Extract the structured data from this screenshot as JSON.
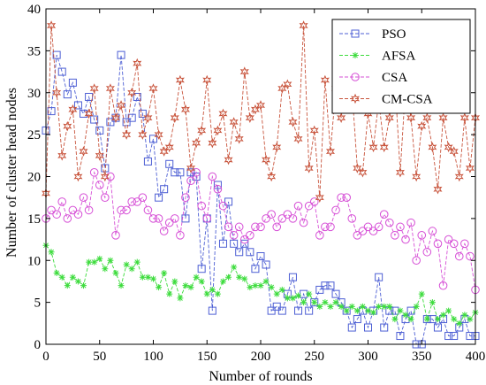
{
  "chart_data": {
    "type": "line",
    "title": "",
    "xlabel": "Number of rounds",
    "ylabel": "Number of cluster head nodes",
    "xlim": [
      0,
      400
    ],
    "ylim": [
      0,
      40
    ],
    "xticks": [
      0,
      50,
      100,
      150,
      200,
      250,
      300,
      350,
      400
    ],
    "yticks": [
      0,
      5,
      10,
      15,
      20,
      25,
      30,
      35,
      40
    ],
    "grid": false,
    "legend_position": "top-right",
    "series": [
      {
        "name": "PSO",
        "color": "#4d5fd4",
        "marker": "square",
        "x": [
          0,
          5,
          10,
          15,
          20,
          25,
          30,
          35,
          40,
          45,
          50,
          55,
          60,
          65,
          70,
          75,
          80,
          85,
          90,
          95,
          100,
          105,
          110,
          115,
          120,
          125,
          130,
          135,
          140,
          145,
          150,
          155,
          160,
          165,
          170,
          175,
          180,
          185,
          190,
          195,
          200,
          205,
          210,
          215,
          220,
          225,
          230,
          235,
          240,
          245,
          250,
          255,
          260,
          265,
          270,
          275,
          280,
          285,
          290,
          295,
          300,
          305,
          310,
          315,
          320,
          325,
          330,
          335,
          340,
          345,
          350,
          355,
          360,
          365,
          370,
          375,
          380,
          385,
          390,
          395,
          400
        ],
        "y": [
          25.5,
          27.8,
          34.5,
          32.5,
          29.8,
          31.2,
          28.5,
          27.5,
          29.5,
          26.8,
          25.5,
          21.0,
          26.5,
          27.0,
          34.5,
          26.5,
          27.0,
          29.5,
          27.5,
          21.8,
          24.5,
          17.5,
          18.5,
          21.5,
          20.5,
          20.5,
          15.0,
          20.5,
          20.0,
          9.0,
          15.0,
          4.0,
          19.0,
          12.0,
          17.0,
          12.0,
          11.0,
          12.0,
          11.0,
          9.0,
          10.5,
          9.5,
          4.0,
          4.5,
          4.0,
          6.0,
          8.0,
          4.0,
          6.0,
          4.0,
          5.0,
          6.5,
          7.0,
          7.0,
          6.0,
          5.0,
          4.0,
          2.0,
          3.0,
          4.0,
          2.0,
          4.0,
          8.0,
          2.0,
          4.0,
          4.0,
          1.0,
          3.0,
          4.0,
          0.0,
          0.0,
          3.0,
          3.0,
          2.0,
          3.0,
          1.0,
          1.0,
          2.0,
          3.0,
          1.0,
          1.0
        ]
      },
      {
        "name": "AFSA",
        "color": "#3ddc3d",
        "marker": "star",
        "x": [
          0,
          5,
          10,
          15,
          20,
          25,
          30,
          35,
          40,
          45,
          50,
          55,
          60,
          65,
          70,
          75,
          80,
          85,
          90,
          95,
          100,
          105,
          110,
          115,
          120,
          125,
          130,
          135,
          140,
          145,
          150,
          155,
          160,
          165,
          170,
          175,
          180,
          185,
          190,
          195,
          200,
          205,
          210,
          215,
          220,
          225,
          230,
          235,
          240,
          245,
          250,
          255,
          260,
          265,
          270,
          275,
          280,
          285,
          290,
          295,
          300,
          305,
          310,
          315,
          320,
          325,
          330,
          335,
          340,
          345,
          350,
          355,
          360,
          365,
          370,
          375,
          380,
          385,
          390,
          395,
          400
        ],
        "y": [
          11.8,
          11.0,
          8.5,
          8.0,
          7.0,
          8.0,
          7.5,
          7.0,
          9.8,
          9.8,
          10.2,
          9.0,
          10.0,
          8.5,
          7.0,
          9.5,
          9.0,
          9.8,
          8.0,
          8.0,
          7.8,
          6.8,
          8.5,
          6.0,
          7.5,
          5.5,
          7.0,
          6.8,
          8.0,
          7.5,
          6.0,
          6.5,
          6.0,
          7.5,
          8.0,
          9.2,
          8.0,
          7.8,
          6.8,
          7.0,
          7.0,
          7.5,
          6.8,
          6.0,
          6.5,
          5.5,
          5.5,
          5.8,
          5.0,
          6.0,
          5.0,
          4.5,
          5.0,
          4.5,
          5.0,
          4.5,
          4.0,
          4.5,
          4.0,
          4.5,
          4.0,
          3.8,
          4.5,
          4.5,
          4.5,
          3.0,
          4.0,
          3.5,
          3.0,
          4.5,
          6.0,
          3.0,
          5.0,
          3.0,
          3.5,
          4.0,
          3.0,
          2.5,
          3.5,
          3.0,
          3.8
        ]
      },
      {
        "name": "CSA",
        "color": "#d64fd6",
        "marker": "circle",
        "x": [
          0,
          5,
          10,
          15,
          20,
          25,
          30,
          35,
          40,
          45,
          50,
          55,
          60,
          65,
          70,
          75,
          80,
          85,
          90,
          95,
          100,
          105,
          110,
          115,
          120,
          125,
          130,
          135,
          140,
          145,
          150,
          155,
          160,
          165,
          170,
          175,
          180,
          185,
          190,
          195,
          200,
          205,
          210,
          215,
          220,
          225,
          230,
          235,
          240,
          245,
          250,
          255,
          260,
          265,
          270,
          275,
          280,
          285,
          290,
          295,
          300,
          305,
          310,
          315,
          320,
          325,
          330,
          335,
          340,
          345,
          350,
          355,
          360,
          365,
          370,
          375,
          380,
          385,
          390,
          395,
          400
        ],
        "y": [
          15.0,
          16.0,
          15.5,
          17.0,
          15.0,
          16.0,
          15.5,
          17.5,
          16.0,
          20.5,
          19.0,
          17.5,
          20.0,
          13.0,
          16.0,
          16.0,
          17.0,
          17.0,
          17.5,
          16.0,
          15.0,
          15.0,
          13.5,
          14.5,
          15.0,
          13.0,
          17.5,
          19.5,
          20.5,
          16.5,
          15.0,
          20.0,
          18.5,
          16.5,
          14.0,
          13.0,
          14.0,
          12.5,
          13.0,
          14.0,
          14.0,
          15.0,
          15.5,
          14.0,
          15.0,
          15.5,
          15.0,
          16.5,
          14.5,
          16.5,
          17.0,
          13.0,
          14.0,
          14.0,
          16.0,
          17.5,
          17.5,
          15.0,
          13.0,
          13.5,
          14.0,
          13.5,
          14.0,
          15.5,
          14.5,
          13.0,
          14.0,
          12.5,
          14.5,
          10.0,
          13.0,
          11.0,
          13.5,
          12.0,
          7.0,
          12.5,
          12.0,
          10.5,
          12.0,
          10.5,
          6.5
        ]
      },
      {
        "name": "CM-CSA",
        "color": "#c8543c",
        "marker": "hexagram",
        "x": [
          0,
          5,
          10,
          15,
          20,
          25,
          30,
          35,
          40,
          45,
          50,
          55,
          60,
          65,
          70,
          75,
          80,
          85,
          90,
          95,
          100,
          105,
          110,
          115,
          120,
          125,
          130,
          135,
          140,
          145,
          150,
          155,
          160,
          165,
          170,
          175,
          180,
          185,
          190,
          195,
          200,
          205,
          210,
          215,
          220,
          225,
          230,
          235,
          240,
          245,
          250,
          255,
          260,
          265,
          270,
          275,
          280,
          285,
          290,
          295,
          300,
          305,
          310,
          315,
          320,
          325,
          330,
          335,
          340,
          345,
          350,
          355,
          360,
          365,
          370,
          375,
          380,
          385,
          390,
          395,
          400
        ],
        "y": [
          18.0,
          38.0,
          30.0,
          22.5,
          26.0,
          28.0,
          20.0,
          23.0,
          27.5,
          30.5,
          22.5,
          20.0,
          30.5,
          27.0,
          28.5,
          25.0,
          30.0,
          33.5,
          25.0,
          27.0,
          30.5,
          25.0,
          23.0,
          23.5,
          27.0,
          31.5,
          28.0,
          21.0,
          24.0,
          25.5,
          31.5,
          24.0,
          25.5,
          27.5,
          22.0,
          26.5,
          24.5,
          32.5,
          27.0,
          28.0,
          28.5,
          22.0,
          20.0,
          23.5,
          30.5,
          31.0,
          26.5,
          24.5,
          38.0,
          21.0,
          25.5,
          17.5,
          31.5,
          23.0,
          30.5,
          27.0,
          32.5,
          30.5,
          21.0,
          20.5,
          27.5,
          23.5,
          29.0,
          23.5,
          27.0,
          31.5,
          20.5,
          31.0,
          27.0,
          20.0,
          26.0,
          27.0,
          23.5,
          18.5,
          27.0,
          23.5,
          23.0,
          20.0,
          27.0,
          21.0,
          27.0
        ]
      }
    ]
  }
}
